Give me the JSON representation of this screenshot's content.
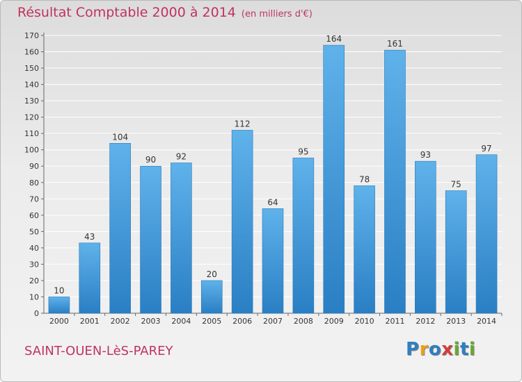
{
  "header": {
    "title": "Résultat Comptable 2000 à 2014",
    "subtitle": "(en milliers d'€)"
  },
  "footer": {
    "commune": "SAINT-OUEN-LèS-PAREY",
    "logo": {
      "text": "Proxiti",
      "letters": [
        {
          "ch": "P",
          "color": "#2f7fc0"
        },
        {
          "ch": "r",
          "color": "#e8a21b"
        },
        {
          "ch": "o",
          "color": "#2f7fc0"
        },
        {
          "ch": "x",
          "color": "#d63c3c"
        },
        {
          "ch": "i",
          "color": "#67a832"
        },
        {
          "ch": "t",
          "color": "#2f7fc0"
        },
        {
          "ch": "i",
          "color": "#67a832"
        }
      ]
    }
  },
  "chart_data": {
    "type": "bar",
    "title": "Résultat Comptable 2000 à 2014",
    "subtitle": "(en milliers d'€)",
    "categories": [
      "2000",
      "2001",
      "2002",
      "2003",
      "2004",
      "2005",
      "2006",
      "2007",
      "2008",
      "2009",
      "2010",
      "2011",
      "2012",
      "2013",
      "2014"
    ],
    "values": [
      10,
      43,
      104,
      90,
      92,
      20,
      112,
      64,
      95,
      164,
      78,
      161,
      93,
      75,
      97
    ],
    "ylim": [
      0,
      170
    ],
    "yticks": [
      0,
      10,
      20,
      30,
      40,
      50,
      60,
      70,
      80,
      90,
      100,
      110,
      120,
      130,
      140,
      150,
      160,
      170
    ],
    "grid": true,
    "bar_color": "#3e95d8",
    "grid_color": "#ffffff",
    "data_labels": true
  }
}
